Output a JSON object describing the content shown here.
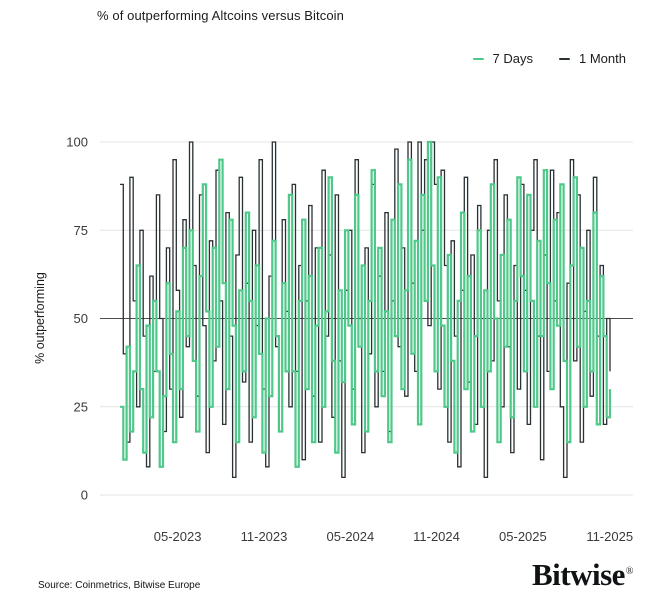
{
  "title": "% of outperforming Altcoins versus Bitcoin",
  "source": "Source: Coinmetrics, Bitwise Europe",
  "brand": {
    "name": "Bitwise",
    "registered": "®"
  },
  "colors": {
    "series_7_days": "#4fc88a",
    "series_1_month": "#293134",
    "gridline": "#e4e4e4",
    "reference_line": "#4d4d4d",
    "text": "#1c1c1c"
  },
  "legend": [
    {
      "label": "7 Days",
      "color": "#4fc88a"
    },
    {
      "label": "1 Month",
      "color": "#293134"
    }
  ],
  "chart_data": {
    "type": "line",
    "step": true,
    "title": "% of outperforming Altcoins versus Bitcoin",
    "xlabel": "",
    "ylabel": "% outperforming",
    "ylim": [
      0,
      100
    ],
    "yticks": [
      0,
      25,
      50,
      75,
      100
    ],
    "reference_line_y": 50,
    "grid": "horizontal",
    "legend_position": "top-right",
    "x_unit": "week",
    "x_start": "01-2023",
    "x_end": "11-2025",
    "xticklabels": [
      "05-2023",
      "11-2023",
      "05-2024",
      "11-2024",
      "05-2025",
      "11-2025"
    ],
    "tick_weeks": [
      17.4,
      43.5,
      69.6,
      95.6,
      121.7,
      147.9
    ],
    "series": [
      {
        "name": "7 Days",
        "color": "#4fc88a",
        "values": [
          25,
          10,
          42,
          18,
          35,
          65,
          30,
          12,
          48,
          22,
          55,
          35,
          8,
          28,
          60,
          40,
          15,
          52,
          30,
          70,
          45,
          75,
          38,
          18,
          62,
          88,
          52,
          25,
          70,
          42,
          95,
          60,
          30,
          78,
          48,
          15,
          58,
          35,
          80,
          55,
          22,
          65,
          40,
          12,
          50,
          28,
          72,
          45,
          18,
          60,
          35,
          85,
          35,
          8,
          55,
          78,
          30,
          62,
          15,
          48,
          70,
          25,
          52,
          90,
          38,
          12,
          58,
          32,
          75,
          48,
          20,
          85,
          42,
          65,
          18,
          55,
          92,
          35,
          70,
          28,
          52,
          15,
          78,
          45,
          88,
          30,
          58,
          95,
          40,
          72,
          20,
          85,
          55,
          100,
          65,
          35,
          90,
          48,
          25,
          68,
          38,
          12,
          55,
          80,
          30,
          62,
          18,
          45,
          75,
          25,
          58,
          35,
          88,
          50,
          15,
          68,
          42,
          78,
          22,
          55,
          90,
          62,
          35,
          85,
          55,
          25,
          72,
          45,
          92,
          60,
          30,
          78,
          48,
          88,
          38,
          15,
          65,
          90,
          42,
          70,
          25,
          55,
          35,
          80,
          20,
          62,
          45,
          22,
          30
        ]
      },
      {
        "name": "1 Month",
        "color": "#293134",
        "values": [
          88,
          40,
          15,
          90,
          55,
          25,
          75,
          45,
          8,
          62,
          35,
          85,
          50,
          18,
          70,
          30,
          95,
          58,
          22,
          78,
          42,
          100,
          65,
          28,
          85,
          48,
          12,
          72,
          38,
          92,
          55,
          20,
          80,
          45,
          5,
          68,
          90,
          32,
          60,
          15,
          75,
          48,
          95,
          30,
          8,
          62,
          100,
          42,
          18,
          78,
          52,
          25,
          88,
          35,
          65,
          10,
          55,
          82,
          28,
          70,
          15,
          92,
          45,
          68,
          22,
          85,
          38,
          5,
          58,
          75,
          30,
          95,
          50,
          12,
          70,
          40,
          88,
          25,
          62,
          35,
          80,
          18,
          55,
          98,
          42,
          70,
          28,
          100,
          60,
          35,
          100,
          75,
          95,
          48,
          100,
          88,
          30,
          92,
          65,
          15,
          72,
          45,
          8,
          58,
          90,
          32,
          68,
          20,
          82,
          50,
          5,
          75,
          38,
          95,
          55,
          25,
          85,
          42,
          12,
          65,
          30,
          88,
          58,
          20,
          75,
          95,
          45,
          10,
          68,
          35,
          92,
          55,
          80,
          25,
          5,
          60,
          95,
          38,
          85,
          15,
          52,
          75,
          28,
          90,
          45,
          65,
          20,
          50,
          35
        ]
      }
    ]
  }
}
